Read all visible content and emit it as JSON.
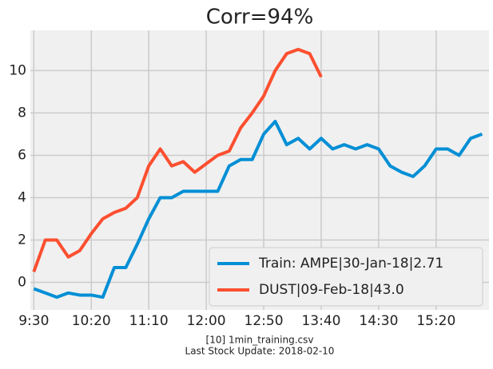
{
  "chart_data": {
    "type": "line",
    "title": "Corr=94%",
    "footer": [
      "[10] 1min_training.csv",
      "Last Stock Update: 2018-02-10"
    ],
    "x": [
      570,
      580,
      590,
      600,
      610,
      620,
      630,
      640,
      650,
      660,
      670,
      680,
      690,
      700,
      710,
      720,
      730,
      740,
      750,
      760,
      770,
      780,
      790,
      800,
      810,
      820,
      830,
      840,
      850,
      860,
      870,
      880,
      890,
      900,
      910,
      920,
      930,
      940,
      950,
      960
    ],
    "series": [
      {
        "name": "Train: AMPE|30-Jan-18|2.71",
        "color": "#008fd5",
        "values": [
          -0.3,
          -0.5,
          -0.7,
          -0.5,
          -0.6,
          -0.6,
          -0.7,
          0.7,
          0.7,
          1.8,
          3.0,
          4.0,
          4.0,
          4.3,
          4.3,
          4.3,
          4.3,
          5.5,
          5.8,
          5.8,
          7.0,
          7.6,
          6.5,
          6.8,
          6.3,
          6.8,
          6.3,
          6.5,
          6.3,
          6.5,
          6.3,
          5.5,
          5.2,
          5.0,
          5.5,
          6.3,
          6.3,
          6.0,
          6.8,
          7.0
        ]
      },
      {
        "name": "DUST|09-Feb-18|43.0",
        "color": "#fc4f30",
        "values": [
          0.5,
          2.0,
          2.0,
          1.2,
          1.5,
          2.3,
          3.0,
          3.3,
          3.5,
          4.0,
          5.5,
          6.3,
          5.5,
          5.7,
          5.2,
          5.6,
          6.0,
          6.2,
          7.3,
          8.0,
          8.8,
          10.0,
          10.8,
          11.0,
          10.8,
          9.7,
          null,
          null,
          null,
          null,
          null,
          null,
          null,
          null,
          null,
          null,
          null,
          null,
          null,
          null
        ]
      }
    ],
    "xlim": [
      567,
      966
    ],
    "xticks": [
      {
        "value": 570,
        "label": "9:30"
      },
      {
        "value": 620,
        "label": "10:20"
      },
      {
        "value": 670,
        "label": "11:10"
      },
      {
        "value": 720,
        "label": "12:00"
      },
      {
        "value": 770,
        "label": "12:50"
      },
      {
        "value": 820,
        "label": "13:40"
      },
      {
        "value": 870,
        "label": "14:30"
      },
      {
        "value": 920,
        "label": "15:20"
      }
    ],
    "ylim": [
      -1.3,
      11.9
    ],
    "yticks": [
      0,
      2,
      4,
      6,
      8,
      10
    ],
    "grid": true,
    "legend": "lower right"
  }
}
